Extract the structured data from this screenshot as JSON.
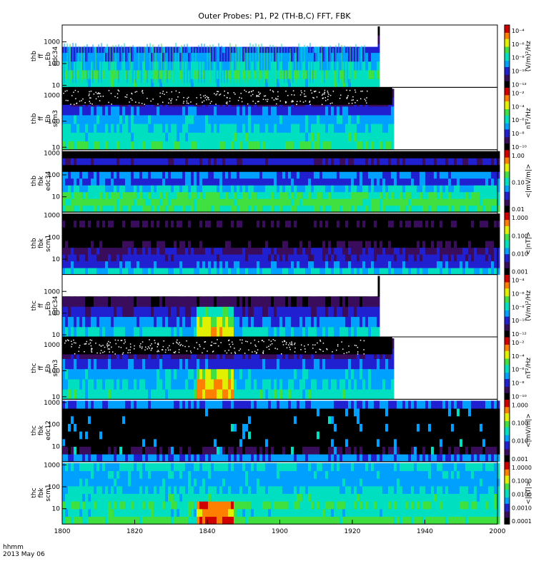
{
  "title": "Outer Probes: P1, P2 (TH-B,C) FFT, FBK",
  "time_label": {
    "line1": "hhmm",
    "line2": "2013 May 06"
  },
  "time_ticks": [
    "1800",
    "1820",
    "1840",
    "1900",
    "1920",
    "1940",
    "2000"
  ],
  "chart_data": [
    {
      "type": "heatmap",
      "ylabel": [
        "thb",
        "ff",
        "Eb",
        "edc34"
      ],
      "yticks": [
        "10",
        "100",
        "1000"
      ],
      "yscale": "log",
      "ylim": [
        8,
        6000
      ],
      "cbar_ticks": [
        "10⁻⁴",
        "10⁻⁶",
        "10⁻⁸",
        "10⁻¹⁰",
        "10⁻¹²"
      ],
      "cbar_label": "(V/m)²/Hz",
      "data_end": "~1804"
    },
    {
      "type": "heatmap",
      "ylabel": [
        "thb",
        "ff",
        "Eb",
        "scm3"
      ],
      "yticks": [
        "10",
        "100",
        "1000"
      ],
      "yscale": "log",
      "ylim": [
        8,
        2000
      ],
      "cbar_ticks": [
        "10⁻²",
        "10⁻⁴",
        "10⁻⁶",
        "10⁻⁸",
        "10⁻¹⁰"
      ],
      "cbar_label": "nT²/Hz",
      "data_end": "~1808"
    },
    {
      "type": "heatmap",
      "ylabel": [
        "thb",
        "fbk",
        "edc34"
      ],
      "yticks": [
        "10",
        "100",
        "1000"
      ],
      "yscale": "log",
      "ylim": [
        2,
        1400
      ],
      "cbar_ticks": [
        "1.00",
        "0.10",
        "0.01"
      ],
      "cbar_label": "<|mV/m|>",
      "data_end": "2000"
    },
    {
      "type": "heatmap",
      "ylabel": [
        "thb",
        "fbk",
        "scm1"
      ],
      "yticks": [
        "10",
        "100",
        "1000"
      ],
      "yscale": "log",
      "ylim": [
        2,
        1400
      ],
      "cbar_ticks": [
        "1.000",
        "0.100",
        "0.010",
        "0.001"
      ],
      "cbar_label": "<|nT|>",
      "data_end": "2000"
    },
    {
      "type": "heatmap",
      "ylabel": [
        "thc",
        "ff",
        "Eb",
        "edc34"
      ],
      "yticks": [
        "10",
        "100",
        "1000"
      ],
      "yscale": "log",
      "ylim": [
        8,
        6000
      ],
      "cbar_ticks": [
        "10⁻⁴",
        "10⁻⁶",
        "10⁻⁸",
        "10⁻¹⁰",
        "10⁻¹²"
      ],
      "cbar_label": "(V/m)²/Hz",
      "data_end": "~1804"
    },
    {
      "type": "heatmap",
      "ylabel": [
        "thc",
        "ff",
        "Eb",
        "scm3"
      ],
      "yticks": [
        "10",
        "100",
        "1000"
      ],
      "yscale": "log",
      "ylim": [
        8,
        2000
      ],
      "cbar_ticks": [
        "10⁻²",
        "10⁻⁴",
        "10⁻⁶",
        "10⁻⁸",
        "10⁻¹⁰"
      ],
      "cbar_label": "nT²/Hz",
      "data_end": "~1808"
    },
    {
      "type": "heatmap",
      "ylabel": [
        "thc",
        "fbk",
        "edc12"
      ],
      "yticks": [
        "10",
        "100",
        "1000"
      ],
      "yscale": "log",
      "ylim": [
        2,
        1400
      ],
      "cbar_ticks": [
        "1.000",
        "0.100",
        "0.010",
        "0.001"
      ],
      "cbar_label": "<|mV/m|>",
      "data_end": "2000"
    },
    {
      "type": "heatmap",
      "ylabel": [
        "thc",
        "fbk",
        "scm1"
      ],
      "yticks": [
        "10",
        "100",
        "1000"
      ],
      "yscale": "log",
      "ylim": [
        2,
        1400
      ],
      "cbar_ticks": [
        "1.0000",
        "0.1000",
        "0.0100",
        "0.0010",
        "0.0001"
      ],
      "cbar_label": "<|nT|>",
      "data_end": "2000"
    }
  ],
  "colors": {
    "background": "#ffffff",
    "axis": "#000000",
    "colormap": [
      "#000000",
      "#3a0c5c",
      "#2020d0",
      "#00a0ff",
      "#00e0c0",
      "#40e040",
      "#e0f000",
      "#ff8000",
      "#d00000"
    ]
  }
}
